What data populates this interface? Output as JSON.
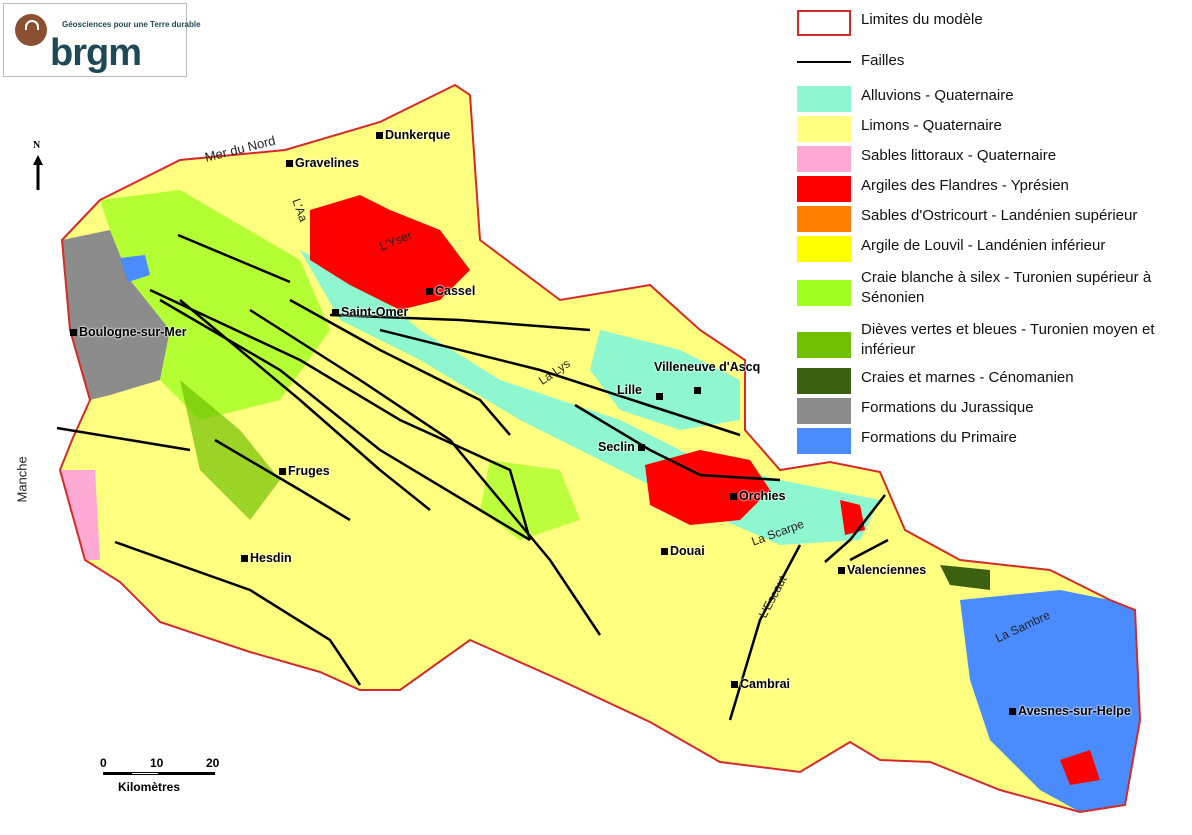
{
  "logo": {
    "name": "brgm",
    "tagline": "Géosciences pour une Terre durable"
  },
  "legend": {
    "items": [
      {
        "label": "Limites du modèle",
        "kind": "outline",
        "color": "#d42a2a"
      },
      {
        "label": "Failles",
        "kind": "line",
        "color": "#000000"
      },
      {
        "label": "Alluvions - Quaternaire",
        "color": "#8ff7cf"
      },
      {
        "label": "Limons - Quaternaire",
        "color": "#ffff80"
      },
      {
        "label": "Sables littoraux - Quaternaire",
        "color": "#ffaad4"
      },
      {
        "label": "Argiles des Flandres - Yprésien",
        "color": "#ff0000"
      },
      {
        "label": "Sables d'Ostricourt - Landénien supérieur",
        "color": "#ff8000"
      },
      {
        "label": "Argile de Louvil - Landénien inférieur",
        "color": "#ffff00"
      },
      {
        "label": "Craie blanche à silex - Turonien supérieur à Sénonien",
        "color": "#a0ff20"
      },
      {
        "label": "Dièves vertes et bleues - Turonien moyen et inférieur",
        "color": "#70c000"
      },
      {
        "label": "Craies et marnes - Cénomanien",
        "color": "#3a6010"
      },
      {
        "label": "Formations du Jurassique",
        "color": "#8c8c8c"
      },
      {
        "label": "Formations du Primaire",
        "color": "#4a8cff"
      }
    ]
  },
  "cities": [
    {
      "name": "Dunkerque"
    },
    {
      "name": "Gravelines"
    },
    {
      "name": "Cassel"
    },
    {
      "name": "Saint-Omer"
    },
    {
      "name": "Boulogne-sur-Mer"
    },
    {
      "name": "Lille"
    },
    {
      "name": "Villeneuve d'Ascq"
    },
    {
      "name": "Seclin"
    },
    {
      "name": "Orchies"
    },
    {
      "name": "Fruges"
    },
    {
      "name": "Hesdin"
    },
    {
      "name": "Douai"
    },
    {
      "name": "Valenciennes"
    },
    {
      "name": "Cambrai"
    },
    {
      "name": "Avesnes-sur-Helpe"
    }
  ],
  "water": [
    "Mer du Nord",
    "Manche",
    "L'Aa",
    "L'Yser",
    "La Lys",
    "La Scarpe",
    "L'Escaut",
    "La Sambre"
  ],
  "north_arrow": "N",
  "scale": {
    "ticks": [
      "0",
      "10",
      "20"
    ],
    "unit": "Kilomètres"
  }
}
